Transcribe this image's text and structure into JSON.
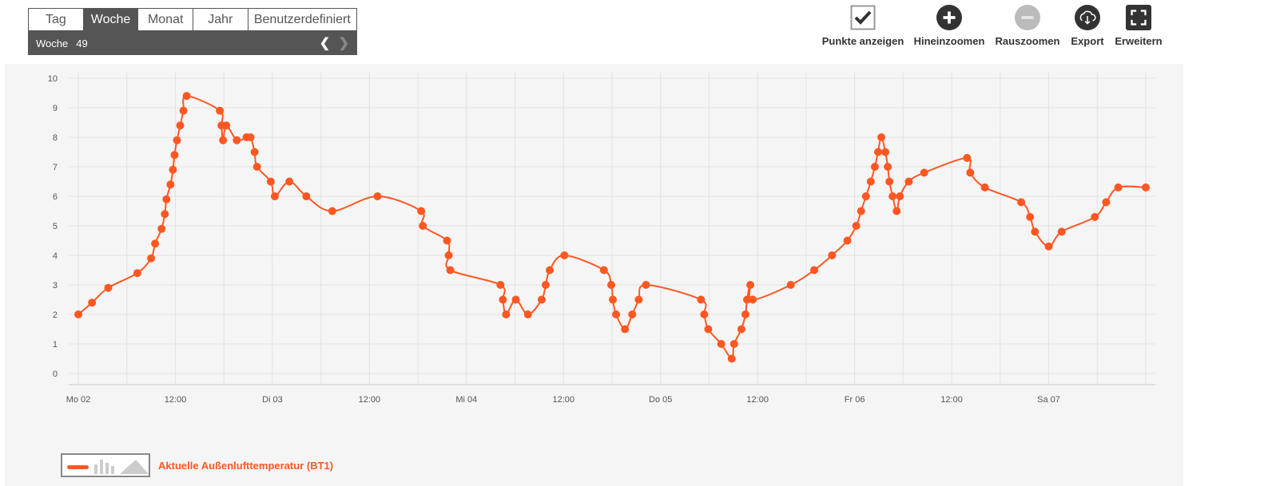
{
  "tabs": [
    {
      "label": "Tag",
      "active": false
    },
    {
      "label": "Woche",
      "active": true
    },
    {
      "label": "Monat",
      "active": false
    },
    {
      "label": "Jahr",
      "active": false
    },
    {
      "label": "Benutzerdefiniert",
      "active": false
    }
  ],
  "period": {
    "label": "Woche",
    "number": "49",
    "prev_icon": "chevron-left-icon",
    "next_icon": "chevron-right-icon"
  },
  "toolbar": {
    "show_points": "Punkte anzeigen",
    "zoom_in": "Hineinzoomen",
    "zoom_out": "Rauszoomen",
    "export": "Export",
    "expand": "Erweitern"
  },
  "colors": {
    "series": "#ff5722",
    "grid": "#e3e3e3",
    "chart_bg": "#f5f5f5"
  },
  "chart_data": {
    "type": "line",
    "y_ticks": [
      0,
      1,
      2,
      3,
      4,
      5,
      6,
      7,
      8,
      9,
      10
    ],
    "ylim": [
      0,
      10
    ],
    "xlim": [
      0,
      132
    ],
    "x_unit": "hours since Mo 02 00:00",
    "x_ticks": [
      {
        "x": 0,
        "label": "Mo 02"
      },
      {
        "x": 12,
        "label": "12:00"
      },
      {
        "x": 24,
        "label": "Di 03"
      },
      {
        "x": 36,
        "label": "12:00"
      },
      {
        "x": 48,
        "label": "Mi 04"
      },
      {
        "x": 60,
        "label": "12:00"
      },
      {
        "x": 72,
        "label": "Do 05"
      },
      {
        "x": 84,
        "label": "12:00"
      },
      {
        "x": 96,
        "label": "Fr 06"
      },
      {
        "x": 108,
        "label": "12:00"
      },
      {
        "x": 120,
        "label": "Sa 07"
      }
    ],
    "grid": true,
    "legend": "bottom-left",
    "series": [
      {
        "name": "Aktuelle Außenlufttemperatur (BT1)",
        "points": [
          [
            0,
            2.0
          ],
          [
            1.7,
            2.4
          ],
          [
            3.7,
            2.9
          ],
          [
            7.3,
            3.4
          ],
          [
            9.0,
            3.9
          ],
          [
            9.5,
            4.4
          ],
          [
            10.3,
            4.9
          ],
          [
            10.7,
            5.4
          ],
          [
            10.9,
            5.9
          ],
          [
            11.4,
            6.4
          ],
          [
            11.7,
            6.9
          ],
          [
            11.9,
            7.4
          ],
          [
            12.2,
            7.9
          ],
          [
            12.6,
            8.4
          ],
          [
            13.0,
            8.9
          ],
          [
            13.4,
            9.4
          ],
          [
            17.5,
            8.9
          ],
          [
            17.7,
            8.4
          ],
          [
            17.9,
            7.9
          ],
          [
            18.3,
            8.4
          ],
          [
            19.6,
            7.9
          ],
          [
            20.8,
            8.0
          ],
          [
            21.3,
            8.0
          ],
          [
            21.8,
            7.5
          ],
          [
            22.1,
            7.0
          ],
          [
            23.8,
            6.5
          ],
          [
            24.3,
            6.0
          ],
          [
            26.1,
            6.5
          ],
          [
            28.2,
            6.0
          ],
          [
            31.4,
            5.5
          ],
          [
            37.0,
            6.0
          ],
          [
            42.4,
            5.5
          ],
          [
            42.6,
            5.0
          ],
          [
            45.6,
            4.5
          ],
          [
            45.8,
            4.0
          ],
          [
            46.0,
            3.5
          ],
          [
            52.2,
            3.0
          ],
          [
            52.5,
            2.5
          ],
          [
            52.9,
            2.0
          ],
          [
            54.1,
            2.5
          ],
          [
            55.6,
            2.0
          ],
          [
            57.3,
            2.5
          ],
          [
            57.8,
            3.0
          ],
          [
            58.3,
            3.5
          ],
          [
            60.1,
            4.0
          ],
          [
            65.0,
            3.5
          ],
          [
            65.9,
            3.0
          ],
          [
            66.1,
            2.5
          ],
          [
            66.5,
            2.0
          ],
          [
            67.6,
            1.5
          ],
          [
            68.5,
            2.0
          ],
          [
            69.3,
            2.5
          ],
          [
            70.2,
            3.0
          ],
          [
            77.0,
            2.5
          ],
          [
            77.4,
            2.0
          ],
          [
            77.9,
            1.5
          ],
          [
            79.5,
            1.0
          ],
          [
            80.8,
            0.5
          ],
          [
            81.1,
            1.0
          ],
          [
            82.0,
            1.5
          ],
          [
            82.5,
            2.0
          ],
          [
            82.7,
            2.5
          ],
          [
            83.1,
            3.0
          ],
          [
            83.4,
            2.5
          ],
          [
            88.1,
            3.0
          ],
          [
            91.0,
            3.5
          ],
          [
            93.2,
            4.0
          ],
          [
            95.1,
            4.5
          ],
          [
            96.2,
            5.0
          ],
          [
            96.8,
            5.5
          ],
          [
            97.4,
            6.0
          ],
          [
            98.0,
            6.5
          ],
          [
            98.5,
            7.0
          ],
          [
            98.9,
            7.5
          ],
          [
            99.3,
            8.0
          ],
          [
            99.8,
            7.5
          ],
          [
            100.1,
            7.0
          ],
          [
            100.3,
            6.5
          ],
          [
            100.7,
            6.0
          ],
          [
            101.2,
            5.5
          ],
          [
            101.6,
            6.0
          ],
          [
            102.7,
            6.5
          ],
          [
            104.6,
            6.8
          ],
          [
            109.9,
            7.3
          ],
          [
            110.3,
            6.8
          ],
          [
            112.1,
            6.3
          ],
          [
            116.6,
            5.8
          ],
          [
            117.7,
            5.3
          ],
          [
            118.3,
            4.8
          ],
          [
            120.0,
            4.3
          ],
          [
            121.6,
            4.8
          ],
          [
            125.7,
            5.3
          ],
          [
            127.1,
            5.8
          ],
          [
            128.6,
            6.3
          ],
          [
            132.0,
            6.3
          ]
        ]
      }
    ]
  }
}
